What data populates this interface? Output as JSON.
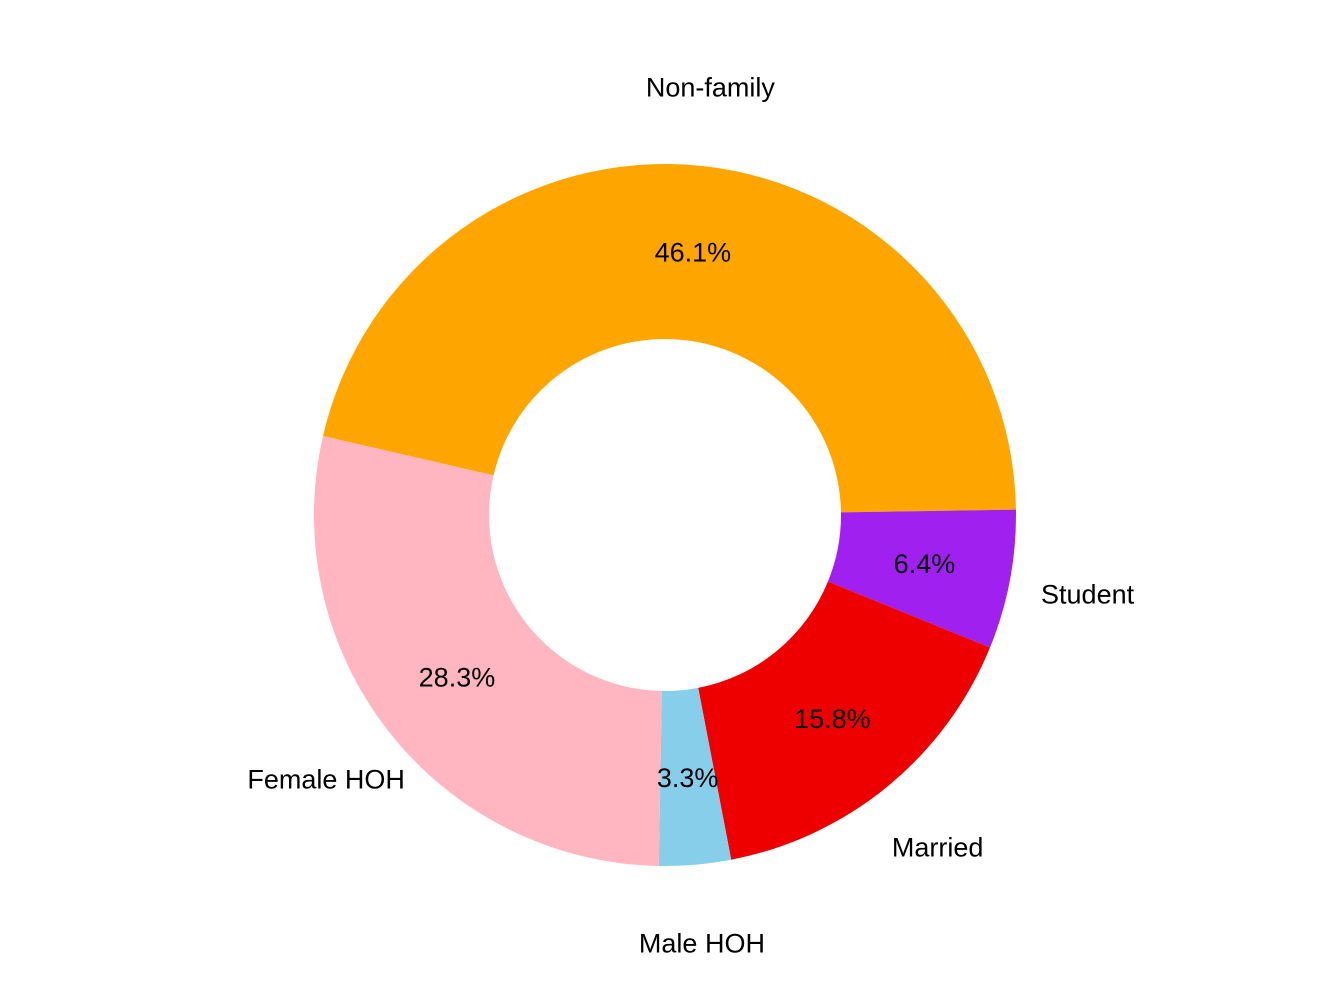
{
  "chart_data": {
    "type": "pie",
    "style": "donut",
    "title": "",
    "legend": "none",
    "slices": [
      {
        "label": "Non-family",
        "value": 46.1,
        "value_label": "46.1%",
        "color": "#FFA500"
      },
      {
        "label": "Student",
        "value": 6.4,
        "value_label": "6.4%",
        "color": "#A020F0"
      },
      {
        "label": "Married",
        "value": 15.8,
        "value_label": "15.8%",
        "color": "#EE0000"
      },
      {
        "label": "Male HOH",
        "value": 3.3,
        "value_label": "3.3%",
        "color": "#87CEEB"
      },
      {
        "label": "Female HOH",
        "value": 28.3,
        "value_label": "28.3%",
        "color": "#FFB6C1"
      }
    ]
  }
}
